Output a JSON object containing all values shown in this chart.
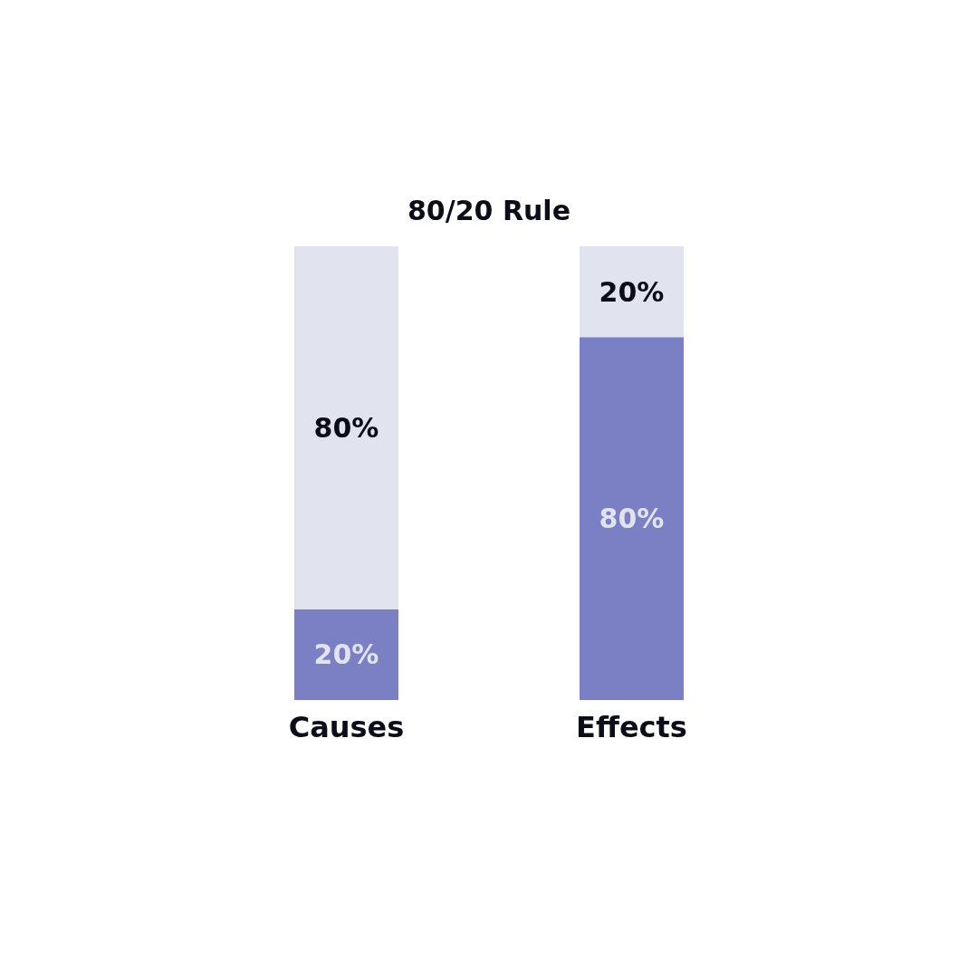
{
  "chart_data": {
    "type": "bar",
    "title": "80/20 Rule",
    "stacked": true,
    "categories": [
      "Causes",
      "Effects"
    ],
    "series": [
      {
        "color": "#7b7fc4",
        "values": [
          20,
          80
        ],
        "value_labels": [
          "20%",
          "80%"
        ]
      },
      {
        "color": "#e1e3ee",
        "values": [
          80,
          20
        ],
        "value_labels": [
          "80%",
          "20%"
        ]
      }
    ],
    "ylim": [
      0,
      100
    ],
    "tick_labels": "x"
  }
}
